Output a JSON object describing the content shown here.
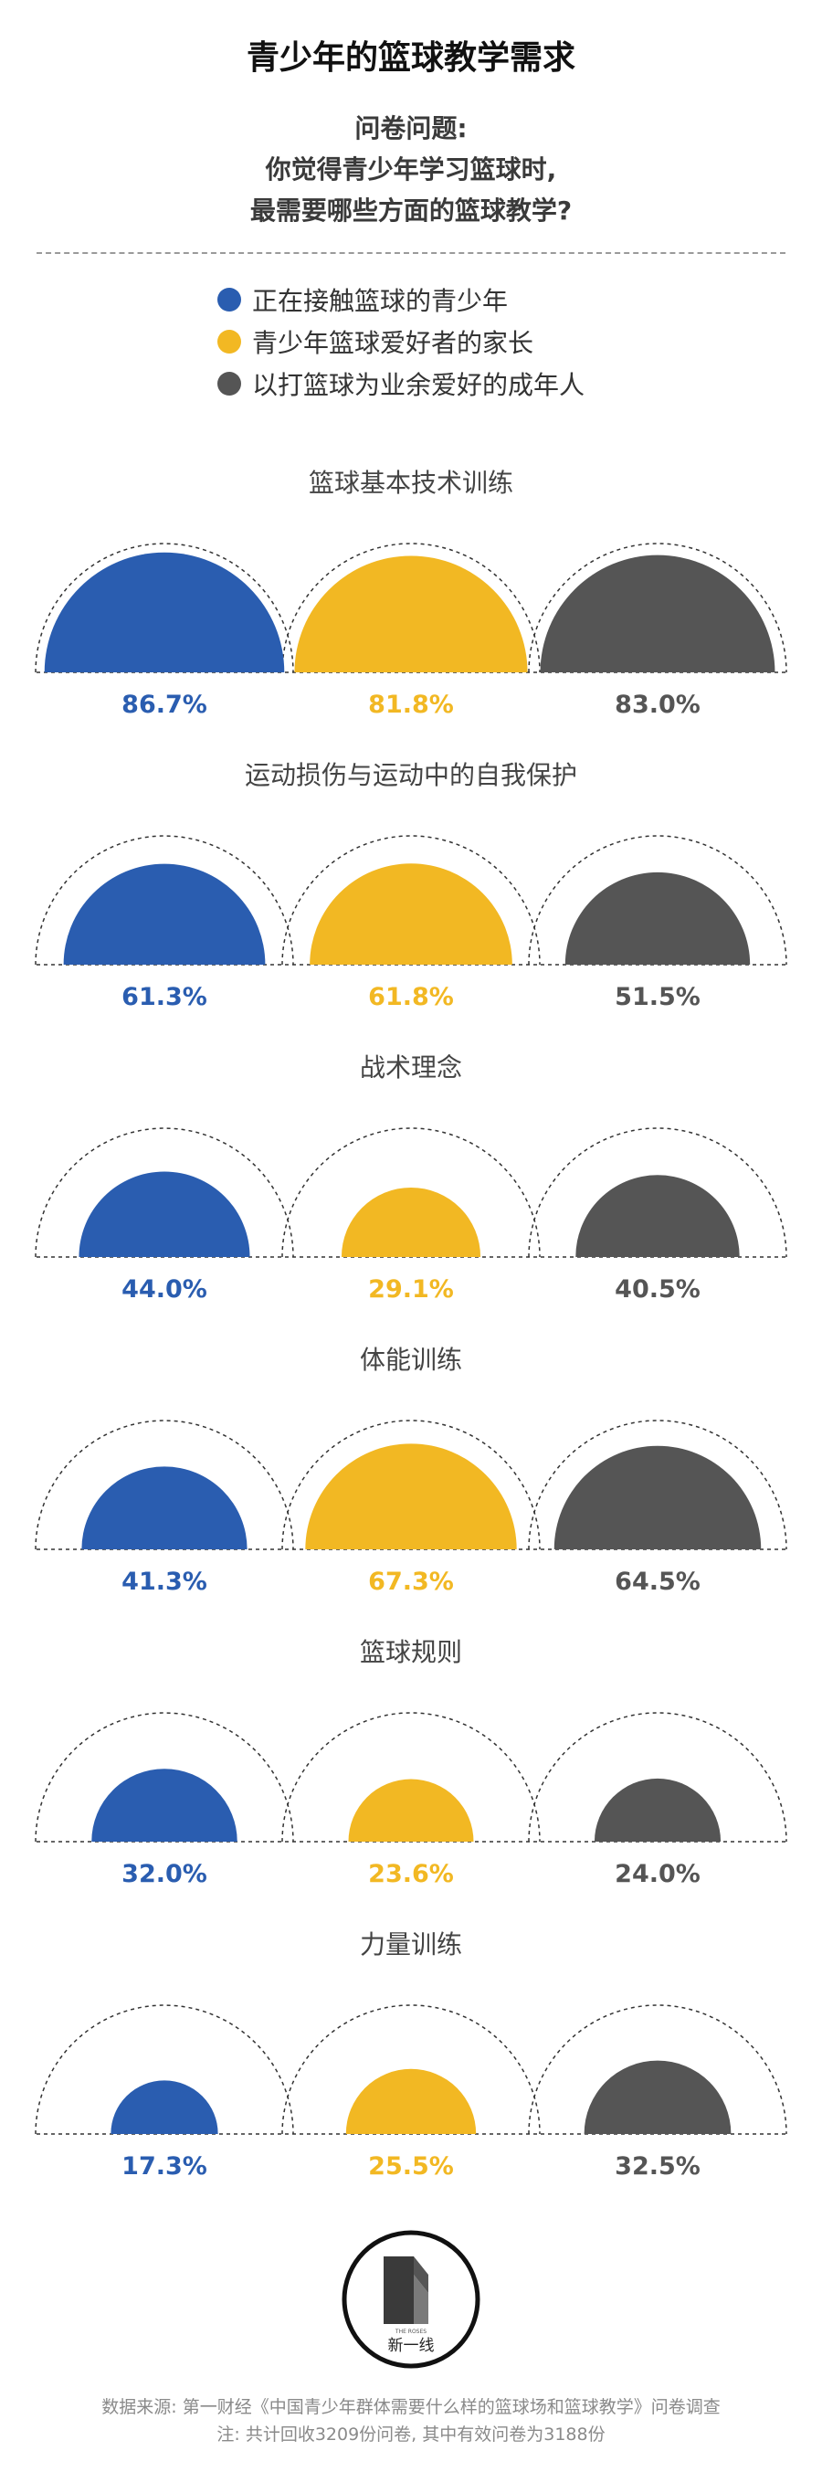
{
  "title": "青少年的篮球教学需求",
  "question": {
    "label": "问卷问题:",
    "line1": "你觉得青少年学习篮球时,",
    "line2": "最需要哪些方面的篮球教学?"
  },
  "colors": {
    "youth": "#2a5db0",
    "parents": "#f2b823",
    "adults": "#555555"
  },
  "legend": [
    {
      "label": "正在接触篮球的青少年",
      "color": "#2a5db0"
    },
    {
      "label": "青少年篮球爱好者的家长",
      "color": "#f2b823"
    },
    {
      "label": "以打篮球为业余爱好的成年人",
      "color": "#555555"
    }
  ],
  "chart_data": {
    "type": "pie",
    "encoding": "semicircle area proportional to percentage",
    "series": [
      {
        "name": "正在接触篮球的青少年",
        "color": "#2a5db0"
      },
      {
        "name": "青少年篮球爱好者的家长",
        "color": "#f2b823"
      },
      {
        "name": "以打篮球为业余爱好的成年人",
        "color": "#555555"
      }
    ],
    "groups": [
      {
        "title": "篮球基本技术训练",
        "values": [
          86.7,
          81.8,
          83.0
        ],
        "labels": [
          "86.7%",
          "81.8%",
          "83.0%"
        ]
      },
      {
        "title": "运动损伤与运动中的自我保护",
        "values": [
          61.3,
          61.8,
          51.5
        ],
        "labels": [
          "61.3%",
          "61.8%",
          "51.5%"
        ]
      },
      {
        "title": "战术理念",
        "values": [
          44.0,
          29.1,
          40.5
        ],
        "labels": [
          "44.0%",
          "29.1%",
          "40.5%"
        ]
      },
      {
        "title": "体能训练",
        "values": [
          41.3,
          67.3,
          64.5
        ],
        "labels": [
          "41.3%",
          "67.3%",
          "64.5%"
        ]
      },
      {
        "title": "篮球规则",
        "values": [
          32.0,
          23.6,
          24.0
        ],
        "labels": [
          "32.0%",
          "23.6%",
          "24.0%"
        ]
      },
      {
        "title": "力量训练",
        "values": [
          17.3,
          25.5,
          32.5
        ],
        "labels": [
          "17.3%",
          "25.5%",
          "32.5%"
        ]
      }
    ],
    "max_value": 100
  },
  "logo": {
    "text_small": "THE ROSES",
    "text": "新一线"
  },
  "footer": {
    "line1": "数据来源: 第一财经《中国青少年群体需要什么样的篮球场和篮球教学》问卷调查",
    "line2": "注: 共计回收3209份问卷, 其中有效问卷为3188份"
  }
}
